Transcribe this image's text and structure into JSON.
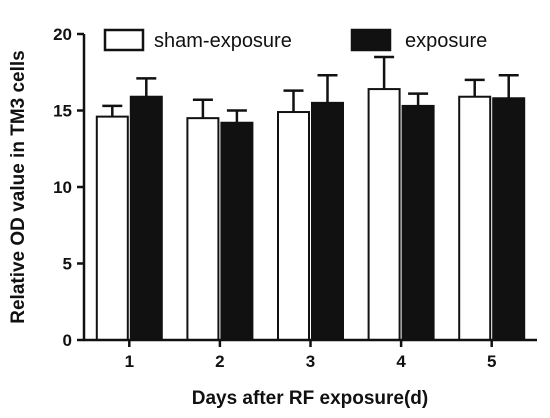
{
  "chart_data": {
    "type": "bar",
    "title": "",
    "xlabel": "Days after RF exposure(d)",
    "ylabel": "Relative OD value in TM3 cells",
    "categories": [
      "1",
      "2",
      "3",
      "4",
      "5"
    ],
    "ylim": [
      0,
      20
    ],
    "yticks": [
      "0",
      "5",
      "10",
      "15",
      "20"
    ],
    "grid": false,
    "legend_position": "top",
    "series": [
      {
        "name": "sham-exposure",
        "fill": "#ffffff",
        "stroke": "#111111",
        "values": [
          14.6,
          14.5,
          14.9,
          16.4,
          15.9
        ],
        "errors": [
          0.7,
          1.2,
          1.4,
          2.1,
          1.1
        ]
      },
      {
        "name": "exposure",
        "fill": "#111111",
        "stroke": "#111111",
        "values": [
          15.9,
          14.2,
          15.5,
          15.3,
          15.8
        ],
        "errors": [
          1.2,
          0.8,
          1.8,
          0.8,
          1.5
        ]
      }
    ]
  }
}
